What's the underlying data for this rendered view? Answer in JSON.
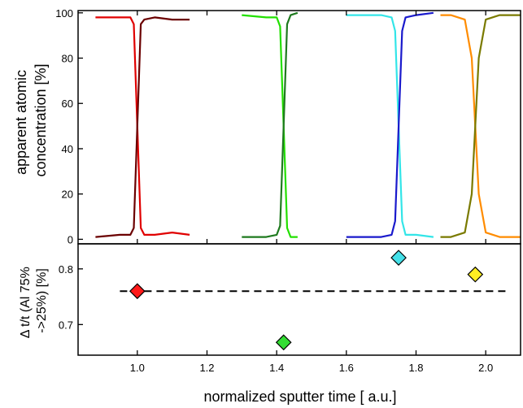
{
  "chart_data": [
    {
      "type": "line",
      "ylabel": [
        "apparent atomic",
        "concentration [%]"
      ],
      "xlim": [
        0.83,
        2.1
      ],
      "ylim": [
        -2,
        101
      ],
      "yticks": [
        0,
        20,
        40,
        60,
        80,
        100
      ],
      "series": [
        {
          "color": "#e00000",
          "x": [
            0.88,
            0.95,
            0.98,
            0.99,
            1.0,
            1.01,
            1.02,
            1.05,
            1.1,
            1.15
          ],
          "y": [
            98,
            98,
            98,
            95,
            50,
            5,
            2,
            2,
            3,
            2
          ]
        },
        {
          "color": "#6b0000",
          "x": [
            0.88,
            0.95,
            0.98,
            0.99,
            1.0,
            1.01,
            1.02,
            1.05,
            1.1,
            1.15
          ],
          "y": [
            1,
            2,
            2,
            5,
            50,
            95,
            97,
            98,
            97,
            97
          ]
        },
        {
          "color": "#22e000",
          "x": [
            1.3,
            1.37,
            1.4,
            1.41,
            1.42,
            1.43,
            1.44,
            1.46
          ],
          "y": [
            99,
            98,
            98,
            94,
            50,
            5,
            1,
            1
          ]
        },
        {
          "color": "#1f7a1f",
          "x": [
            1.3,
            1.37,
            1.4,
            1.41,
            1.42,
            1.43,
            1.44,
            1.46
          ],
          "y": [
            1,
            1,
            2,
            6,
            50,
            95,
            99,
            100
          ]
        },
        {
          "color": "#33e5e8",
          "x": [
            1.6,
            1.7,
            1.73,
            1.74,
            1.75,
            1.76,
            1.77,
            1.8,
            1.85
          ],
          "y": [
            99,
            99,
            98,
            92,
            50,
            8,
            2,
            2,
            1
          ]
        },
        {
          "color": "#1a1acc",
          "x": [
            1.6,
            1.7,
            1.73,
            1.74,
            1.75,
            1.76,
            1.77,
            1.8,
            1.85
          ],
          "y": [
            1,
            1,
            2,
            8,
            50,
            92,
            98,
            99,
            100
          ]
        },
        {
          "color": "#ff8c00",
          "x": [
            1.87,
            1.9,
            1.94,
            1.96,
            1.97,
            1.98,
            2.0,
            2.04,
            2.1
          ],
          "y": [
            99,
            99,
            97,
            80,
            50,
            20,
            3,
            1,
            1
          ]
        },
        {
          "color": "#7a7a00",
          "x": [
            1.87,
            1.9,
            1.94,
            1.96,
            1.97,
            1.98,
            2.0,
            2.04,
            2.1
          ],
          "y": [
            1,
            1,
            3,
            20,
            50,
            80,
            97,
            99,
            99
          ]
        }
      ]
    },
    {
      "type": "scatter",
      "xlabel": "normalized sputter time [ a.u.]",
      "ylabel": [
        "Δ t/t (Al 75%",
        "->25%) [%]"
      ],
      "xlim": [
        0.83,
        2.1
      ],
      "ylim": [
        0.645,
        0.845
      ],
      "xticks": [
        1.0,
        1.2,
        1.4,
        1.6,
        1.8,
        2.0
      ],
      "yticks": [
        0.7,
        0.8
      ],
      "points": [
        {
          "x": 1.0,
          "y": 0.76,
          "color": "#ff1a1a"
        },
        {
          "x": 1.42,
          "y": 0.668,
          "color": "#33dd33"
        },
        {
          "x": 1.75,
          "y": 0.82,
          "color": "#44e0e8"
        },
        {
          "x": 1.97,
          "y": 0.79,
          "color": "#ffee22"
        }
      ],
      "reference_line": {
        "x": [
          0.95,
          2.07
        ],
        "y": 0.76,
        "style": "dashed"
      }
    }
  ]
}
